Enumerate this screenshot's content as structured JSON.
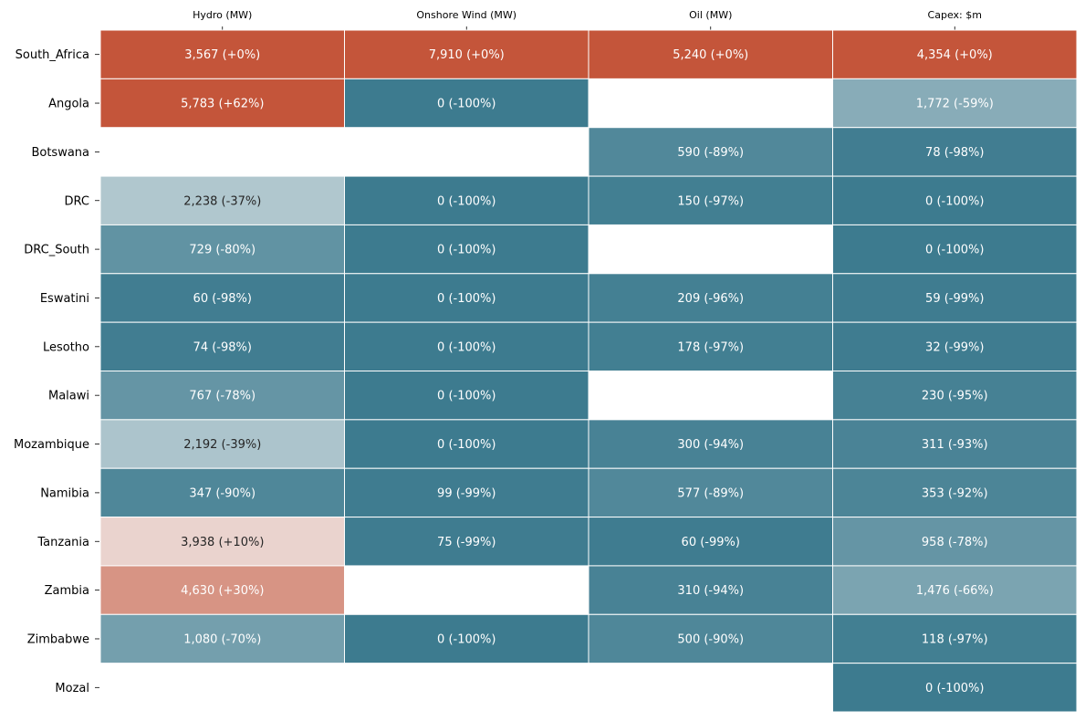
{
  "chart_data": {
    "type": "heatmap",
    "columns": [
      "Hydro (MW)",
      "Onshore Wind (MW)",
      "Oil (MW)",
      "Capex: $m"
    ],
    "rows": [
      "South_Africa",
      "Angola",
      "Botswana",
      "DRC",
      "DRC_South",
      "Eswatini",
      "Lesotho",
      "Malawi",
      "Mozambique",
      "Namibia",
      "Tanzania",
      "Zambia",
      "Zimbabwe",
      "Mozal"
    ],
    "values": [
      [
        3567,
        7910,
        5240,
        4354
      ],
      [
        5783,
        0,
        null,
        1772
      ],
      [
        null,
        null,
        590,
        78
      ],
      [
        2238,
        0,
        150,
        0
      ],
      [
        729,
        0,
        null,
        0
      ],
      [
        60,
        0,
        209,
        59
      ],
      [
        74,
        0,
        178,
        32
      ],
      [
        767,
        0,
        null,
        230
      ],
      [
        2192,
        0,
        300,
        311
      ],
      [
        347,
        99,
        577,
        353
      ],
      [
        3938,
        75,
        60,
        958
      ],
      [
        4630,
        null,
        310,
        1476
      ],
      [
        1080,
        0,
        500,
        118
      ],
      [
        null,
        null,
        null,
        0
      ]
    ],
    "pct_change": [
      [
        0,
        0,
        0,
        0
      ],
      [
        62,
        -100,
        null,
        -59
      ],
      [
        null,
        null,
        -89,
        -98
      ],
      [
        -37,
        -100,
        -97,
        -100
      ],
      [
        -80,
        -100,
        null,
        -100
      ],
      [
        -98,
        -100,
        -96,
        -99
      ],
      [
        -98,
        -100,
        -97,
        -99
      ],
      [
        -78,
        -100,
        null,
        -95
      ],
      [
        -39,
        -100,
        -94,
        -93
      ],
      [
        -90,
        -99,
        -89,
        -92
      ],
      [
        10,
        -99,
        -99,
        -78
      ],
      [
        30,
        null,
        -94,
        -66
      ],
      [
        -70,
        -100,
        -90,
        -97
      ],
      [
        null,
        null,
        null,
        -100
      ]
    ],
    "labels": [
      [
        "3,567 (+0%)",
        "7,910 (+0%)",
        "5,240 (+0%)",
        "4,354 (+0%)"
      ],
      [
        "5,783 (+62%)",
        "0 (-100%)",
        "",
        "1,772 (-59%)"
      ],
      [
        "",
        "",
        "590 (-89%)",
        "78 (-98%)"
      ],
      [
        "2,238 (-37%)",
        "0 (-100%)",
        "150 (-97%)",
        "0 (-100%)"
      ],
      [
        "729 (-80%)",
        "0 (-100%)",
        "",
        "0 (-100%)"
      ],
      [
        "60 (-98%)",
        "0 (-100%)",
        "209 (-96%)",
        "59 (-99%)"
      ],
      [
        "74 (-98%)",
        "0 (-100%)",
        "178 (-97%)",
        "32 (-99%)"
      ],
      [
        "767 (-78%)",
        "0 (-100%)",
        "",
        "230 (-95%)"
      ],
      [
        "2,192 (-39%)",
        "0 (-100%)",
        "300 (-94%)",
        "311 (-93%)"
      ],
      [
        "347 (-90%)",
        "99 (-99%)",
        "577 (-89%)",
        "353 (-92%)"
      ],
      [
        "3,938 (+10%)",
        "75 (-99%)",
        "60 (-99%)",
        "958 (-78%)"
      ],
      [
        "4,630 (+30%)",
        "",
        "310 (-94%)",
        "1,476 (-66%)"
      ],
      [
        "1,080 (-70%)",
        "0 (-100%)",
        "500 (-90%)",
        "118 (-97%)"
      ],
      [
        "",
        "",
        "",
        "0 (-100%)"
      ]
    ],
    "color_scale": {
      "negative": "#3d7b8f",
      "neutral": "#f3f3f3",
      "positive": "#c4553a",
      "min_pct": -100,
      "max_pct": 50
    },
    "x_axis_position": "top",
    "grid": false,
    "legend": "none"
  }
}
